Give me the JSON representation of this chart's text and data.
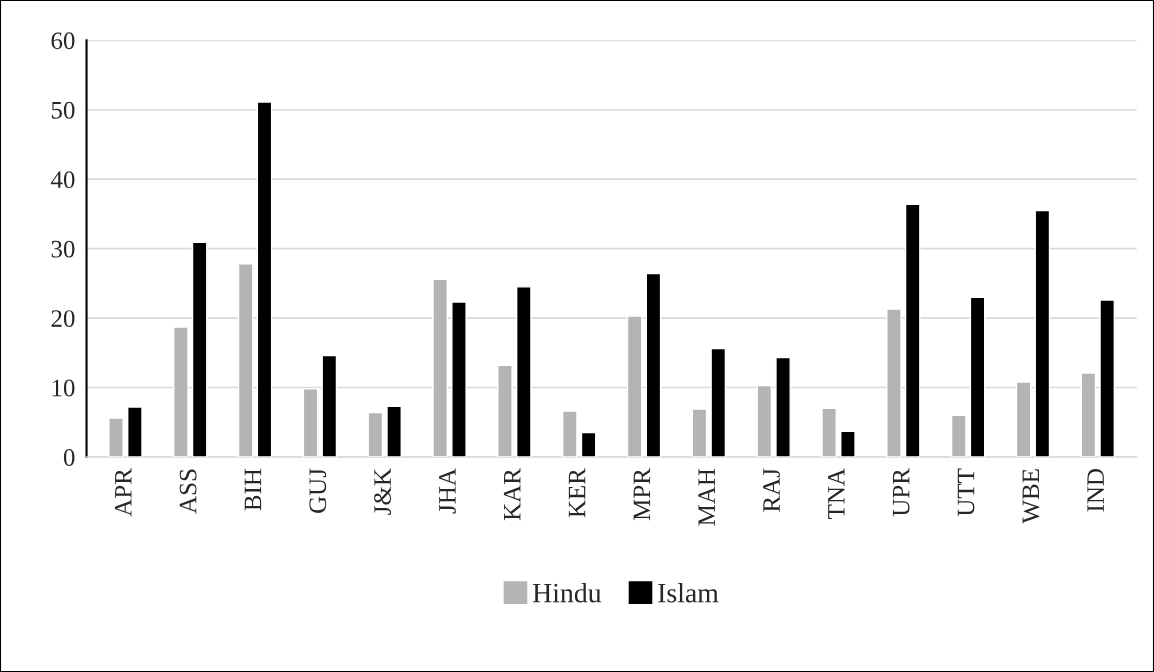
{
  "chart_data": {
    "type": "bar",
    "categories": [
      "APR",
      "ASS",
      "BIH",
      "GUJ",
      "J&K",
      "JHA",
      "KAR",
      "KER",
      "MPR",
      "MAH",
      "RAJ",
      "TNA",
      "UPR",
      "UTT",
      "WBE",
      "IND"
    ],
    "series": [
      {
        "name": "Hindu",
        "color": "#b4b4b4",
        "values": [
          5.6,
          18.7,
          27.8,
          9.8,
          6.4,
          25.6,
          13.2,
          6.6,
          20.3,
          6.9,
          10.3,
          7.0,
          21.3,
          6.0,
          10.8,
          12.1
        ]
      },
      {
        "name": "Islam",
        "color": "#000000",
        "values": [
          7.2,
          30.9,
          51.1,
          14.6,
          7.3,
          22.3,
          24.5,
          3.5,
          26.4,
          15.6,
          14.3,
          3.7,
          36.4,
          23.0,
          35.5,
          22.6
        ]
      }
    ],
    "ylim": [
      0,
      60
    ],
    "yticks": [
      0,
      10,
      20,
      30,
      40,
      50,
      60
    ],
    "grid": "y",
    "legend": "bottom"
  }
}
